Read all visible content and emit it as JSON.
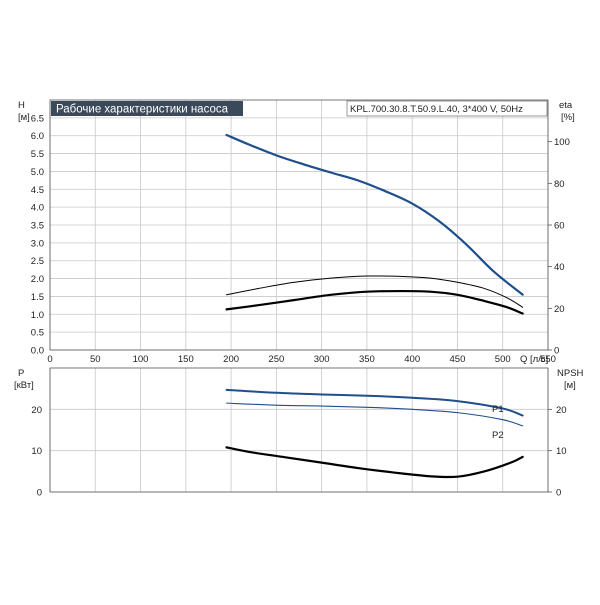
{
  "header": {
    "title": "Рабочие характеристики насоса",
    "model": "KPL.700.30.8.T.50.9.L.40, 3*400 V, 50Hz"
  },
  "axes": {
    "h_name": "H",
    "h_unit": "[м]",
    "eta_name": "eta",
    "eta_unit": "[%]",
    "p_name": "P",
    "p_unit": "[кВт]",
    "npsh_name": "NPSH",
    "npsh_unit": "[м]",
    "q_label": "Q [л/с]"
  },
  "colors": {
    "head": "#1f4e8c",
    "power": "#1f4e8c",
    "eta": "#000000",
    "npsh": "#000000",
    "title_bg": "#3b4a5a"
  },
  "chart_data": [
    {
      "type": "line",
      "title": "Рабочие характеристики насоса",
      "xlabel": "Q [л/с]",
      "ylabel": "H [м]",
      "y2label": "eta [%]",
      "xlim": [
        0,
        550
      ],
      "ylim": [
        0,
        7
      ],
      "y2lim": [
        0,
        120
      ],
      "x_ticks": [
        "0",
        "50",
        "100",
        "150",
        "200",
        "250",
        "300",
        "350",
        "400",
        "450",
        "500",
        "550"
      ],
      "y_ticks": [
        "0.0",
        "0.5",
        "1.0",
        "1.5",
        "2.0",
        "2.5",
        "3.0",
        "3.5",
        "4.0",
        "4.5",
        "5.0",
        "5.5",
        "6.0",
        "6.5"
      ],
      "y2_ticks": [
        "0",
        "20",
        "40",
        "60",
        "80",
        "100"
      ],
      "grid": true,
      "series": [
        {
          "axis": "y",
          "x": [
            195,
            220,
            250,
            280,
            310,
            340,
            370,
            400,
            430,
            460,
            490,
            522
          ],
          "values": [
            6.02,
            5.75,
            5.45,
            5.2,
            4.97,
            4.75,
            4.45,
            4.1,
            3.6,
            2.95,
            2.2,
            1.55
          ]
        },
        {
          "axis": "y2",
          "x": [
            195,
            230,
            270,
            310,
            350,
            390,
            420,
            450,
            480,
            505,
            522
          ],
          "values": [
            26.5,
            29.5,
            32.5,
            34.5,
            35.5,
            35.3,
            34.5,
            32.5,
            29.5,
            25,
            20.5
          ]
        },
        {
          "axis": "y2",
          "x": [
            195,
            230,
            270,
            310,
            350,
            390,
            420,
            450,
            480,
            505,
            522
          ],
          "values": [
            19.5,
            21.5,
            24,
            26.5,
            28,
            28.3,
            28,
            26.5,
            23.5,
            20.5,
            17.5
          ]
        }
      ]
    },
    {
      "type": "line",
      "xlabel": "Q [л/с]",
      "ylabel": "P [кВт]",
      "y2label": "NPSH [м]",
      "xlim": [
        0,
        550
      ],
      "ylim": [
        0,
        30
      ],
      "y2lim": [
        0,
        30
      ],
      "y_ticks": [
        "0",
        "10",
        "20"
      ],
      "y2_ticks": [
        "0",
        "10",
        "20"
      ],
      "grid": true,
      "series": [
        {
          "name": "P1",
          "axis": "y",
          "x": [
            195,
            250,
            300,
            350,
            400,
            450,
            500,
            522
          ],
          "values": [
            24.7,
            24,
            23.6,
            23.3,
            22.8,
            22,
            20.2,
            18.5
          ]
        },
        {
          "name": "P2",
          "axis": "y",
          "x": [
            195,
            250,
            300,
            350,
            400,
            450,
            500,
            522
          ],
          "values": [
            21.5,
            21,
            20.8,
            20.5,
            20,
            19.2,
            17.5,
            16
          ]
        },
        {
          "axis": "y2",
          "x": [
            195,
            220,
            260,
            300,
            340,
            380,
            420,
            450,
            480,
            510,
            522
          ],
          "values": [
            10.8,
            9.7,
            8.4,
            7.1,
            5.8,
            4.7,
            3.8,
            3.7,
            5,
            7.2,
            8.5
          ]
        }
      ]
    }
  ]
}
